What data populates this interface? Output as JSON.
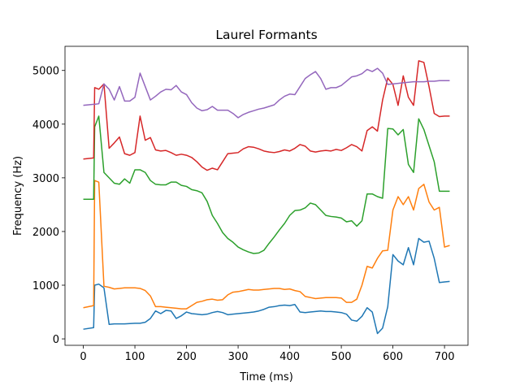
{
  "chart_data": {
    "type": "line",
    "title": "Laurel Formants",
    "xlabel": "Time (ms)",
    "ylabel": "Frequency (Hz)",
    "x": [
      0,
      20,
      22,
      30,
      40,
      50,
      60,
      70,
      80,
      90,
      100,
      110,
      120,
      130,
      140,
      150,
      160,
      170,
      180,
      190,
      200,
      210,
      220,
      230,
      240,
      250,
      260,
      270,
      280,
      290,
      300,
      310,
      320,
      330,
      340,
      350,
      360,
      370,
      380,
      390,
      400,
      410,
      420,
      430,
      440,
      450,
      460,
      470,
      480,
      490,
      500,
      510,
      520,
      530,
      540,
      550,
      560,
      570,
      580,
      590,
      600,
      610,
      620,
      630,
      640,
      650,
      660,
      670,
      680,
      690,
      700,
      710
    ],
    "series": [
      {
        "color": "#1f77b4",
        "values": [
          180,
          210,
          1000,
          1020,
          950,
          270,
          280,
          280,
          280,
          285,
          290,
          290,
          310,
          380,
          520,
          470,
          530,
          520,
          380,
          430,
          500,
          470,
          460,
          450,
          460,
          490,
          510,
          490,
          450,
          460,
          470,
          480,
          490,
          500,
          520,
          550,
          590,
          600,
          620,
          630,
          620,
          640,
          500,
          490,
          500,
          510,
          520,
          510,
          510,
          500,
          490,
          460,
          350,
          330,
          420,
          580,
          500,
          100,
          200,
          600,
          1570,
          1450,
          1380,
          1700,
          1380,
          1870,
          1800,
          1820,
          1500,
          1050,
          1060,
          1070
        ]
      },
      {
        "color": "#ff7f0e",
        "values": [
          580,
          620,
          2950,
          2920,
          980,
          960,
          930,
          940,
          950,
          950,
          950,
          940,
          900,
          800,
          600,
          600,
          590,
          580,
          570,
          560,
          560,
          620,
          680,
          700,
          730,
          740,
          720,
          730,
          820,
          870,
          880,
          900,
          920,
          910,
          910,
          920,
          930,
          940,
          940,
          920,
          930,
          900,
          880,
          790,
          770,
          750,
          760,
          770,
          770,
          770,
          760,
          680,
          680,
          740,
          1000,
          1350,
          1320,
          1500,
          1640,
          1650,
          2400,
          2650,
          2500,
          2650,
          2400,
          2800,
          2880,
          2550,
          2400,
          2450,
          1710,
          1740
        ]
      },
      {
        "color": "#2ca02c",
        "values": [
          2600,
          2600,
          3950,
          4150,
          3100,
          3000,
          2900,
          2880,
          2980,
          2900,
          3150,
          3150,
          3100,
          2950,
          2880,
          2870,
          2870,
          2920,
          2920,
          2860,
          2840,
          2780,
          2760,
          2720,
          2560,
          2300,
          2150,
          1980,
          1870,
          1800,
          1710,
          1660,
          1620,
          1590,
          1600,
          1650,
          1780,
          1900,
          2030,
          2150,
          2300,
          2390,
          2400,
          2440,
          2530,
          2500,
          2400,
          2300,
          2280,
          2270,
          2250,
          2180,
          2200,
          2100,
          2200,
          2700,
          2700,
          2650,
          2620,
          3920,
          3910,
          3800,
          3900,
          3250,
          3100,
          4100,
          3900,
          3600,
          3300,
          2750,
          2750,
          2750
        ]
      },
      {
        "color": "#d62728",
        "values": [
          3350,
          3370,
          4680,
          4650,
          4750,
          3550,
          3650,
          3760,
          3450,
          3420,
          3470,
          4150,
          3700,
          3750,
          3520,
          3500,
          3510,
          3470,
          3420,
          3440,
          3420,
          3380,
          3300,
          3200,
          3140,
          3180,
          3150,
          3300,
          3450,
          3460,
          3470,
          3540,
          3580,
          3570,
          3540,
          3500,
          3480,
          3470,
          3490,
          3520,
          3500,
          3550,
          3620,
          3590,
          3500,
          3480,
          3500,
          3510,
          3500,
          3530,
          3510,
          3560,
          3620,
          3580,
          3500,
          3880,
          3950,
          3870,
          4450,
          4860,
          4740,
          4350,
          4900,
          4500,
          4350,
          5180,
          5150,
          4700,
          4200,
          4140,
          4150,
          4150
        ]
      },
      {
        "color": "#9467bd",
        "values": [
          4350,
          4370,
          4370,
          4380,
          4750,
          4650,
          4450,
          4700,
          4430,
          4430,
          4500,
          4950,
          4700,
          4450,
          4520,
          4600,
          4650,
          4640,
          4720,
          4600,
          4550,
          4400,
          4300,
          4250,
          4270,
          4330,
          4260,
          4260,
          4260,
          4200,
          4120,
          4180,
          4220,
          4250,
          4280,
          4300,
          4330,
          4360,
          4450,
          4520,
          4560,
          4550,
          4700,
          4850,
          4920,
          4980,
          4850,
          4650,
          4680,
          4680,
          4720,
          4800,
          4880,
          4900,
          4940,
          5020,
          4980,
          5040,
          4950,
          4740,
          4750,
          4760,
          4770,
          4780,
          4790,
          4790,
          4790,
          4800,
          4800,
          4810,
          4810,
          4810
        ]
      }
    ],
    "xlim": [
      -35.5,
      745.5
    ],
    "ylim": [
      -120,
      5450
    ],
    "xticks": [
      0,
      100,
      200,
      300,
      400,
      500,
      600,
      700
    ],
    "yticks": [
      0,
      1000,
      2000,
      3000,
      4000,
      5000
    ]
  }
}
